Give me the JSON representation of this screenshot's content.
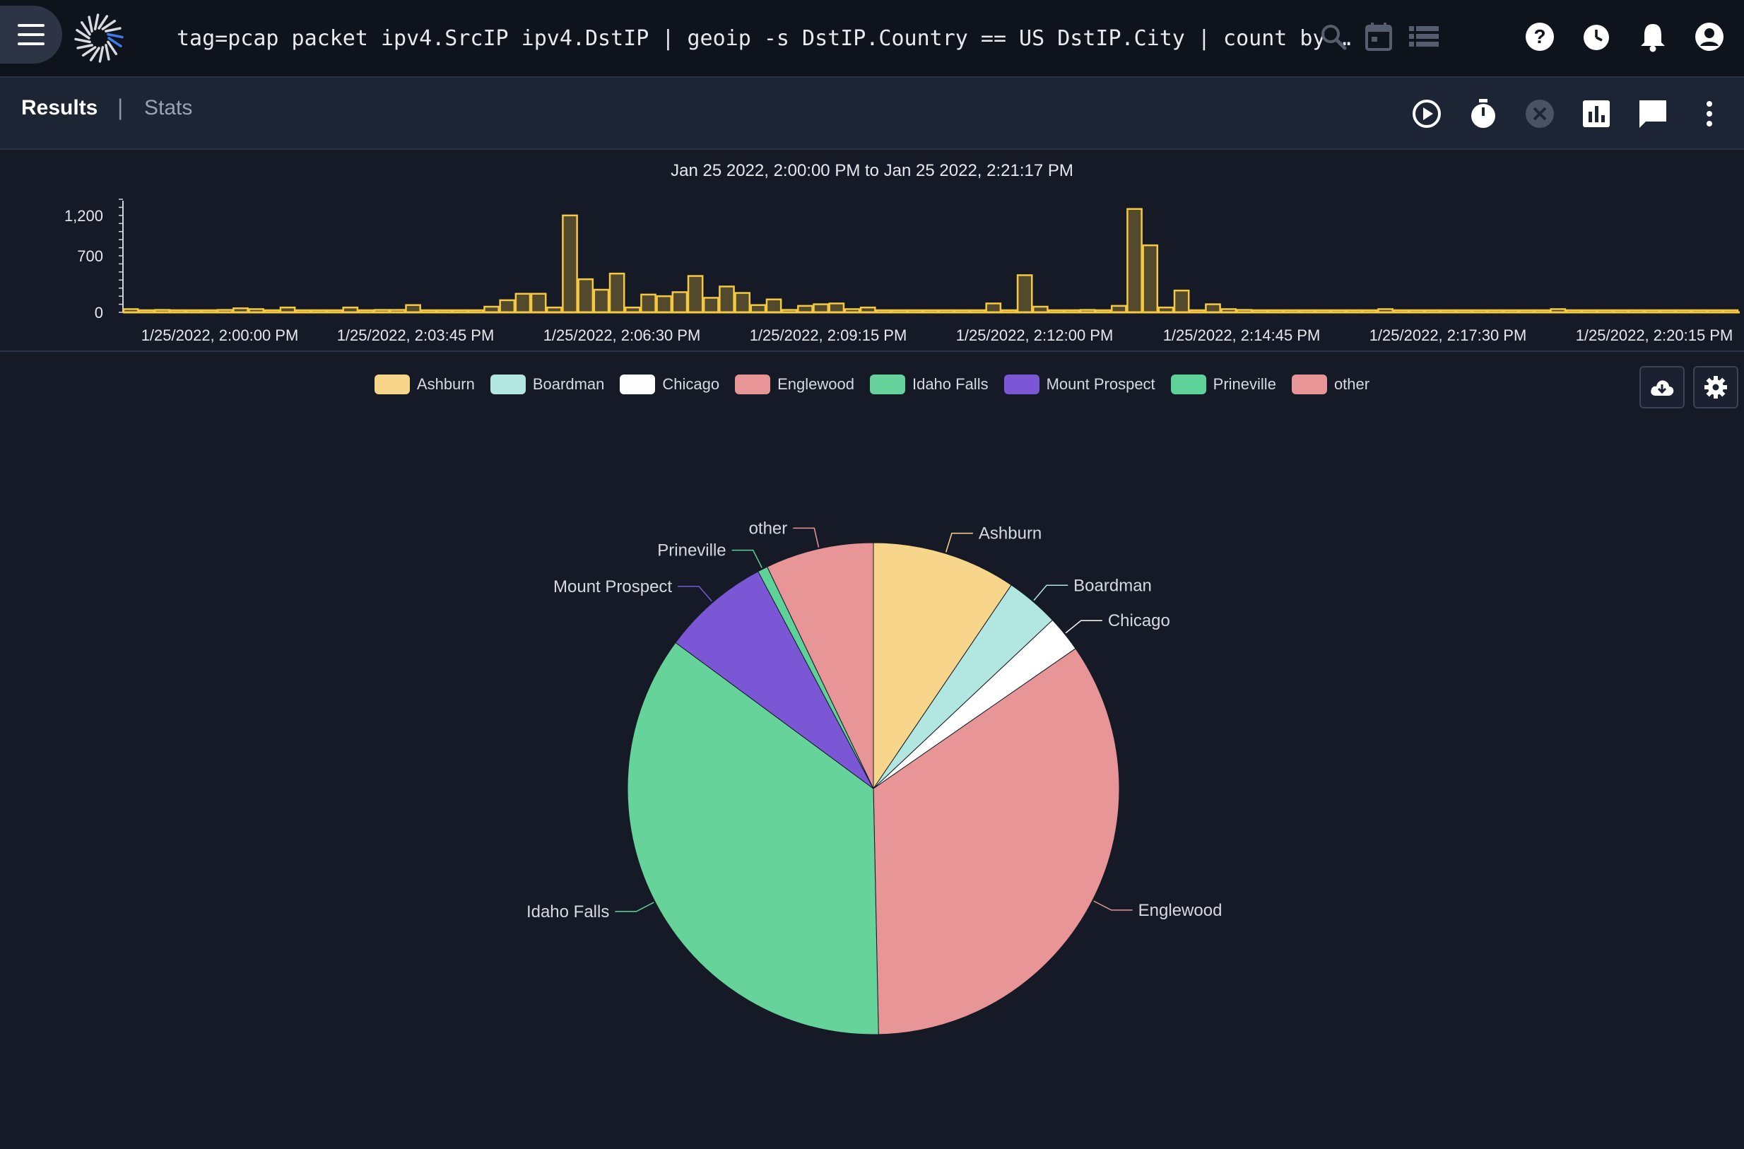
{
  "header": {
    "query": "tag=pcap packet ipv4.SrcIP ipv4.DstIP | geoip -s DstIP.Country == US DstIP.City | count by …",
    "icons": [
      "menu-icon",
      "gravwell-logo",
      "search-icon",
      "calendar-icon",
      "list-icon",
      "help-icon",
      "clock-icon",
      "bell-icon",
      "account-icon"
    ]
  },
  "tabs": {
    "results": "Results",
    "separator": "|",
    "stats": "Stats"
  },
  "toolbar": {
    "icons": [
      "play-icon",
      "timer-icon",
      "cancel-icon",
      "chart-icon",
      "comment-icon",
      "more-icon"
    ]
  },
  "histogram": {
    "range_label": "Jan 25 2022, 2:00:00 PM to Jan 25 2022, 2:21:17 PM",
    "y_ticks": [
      "1,200",
      "700",
      "0"
    ],
    "x_ticks": [
      "1/25/2022, 2:00:00 PM",
      "1/25/2022, 2:03:45 PM",
      "1/25/2022, 2:06:30 PM",
      "1/25/2022, 2:09:15 PM",
      "1/25/2022, 2:12:00 PM",
      "1/25/2022, 2:14:45 PM",
      "1/25/2022, 2:17:30 PM",
      "1/25/2022, 2:20:15 PM"
    ],
    "ymax": 1400,
    "bar_color": "#f5c842",
    "values": [
      40,
      20,
      30,
      20,
      10,
      20,
      30,
      50,
      40,
      20,
      60,
      20,
      20,
      20,
      60,
      20,
      30,
      30,
      90,
      20,
      10,
      20,
      20,
      70,
      150,
      230,
      230,
      60,
      1200,
      410,
      280,
      480,
      60,
      220,
      200,
      250,
      450,
      180,
      320,
      240,
      90,
      160,
      30,
      80,
      100,
      110,
      40,
      60,
      10,
      10,
      10,
      10,
      20,
      10,
      10,
      110,
      10,
      460,
      70,
      10,
      10,
      30,
      10,
      80,
      1280,
      830,
      60,
      270,
      20,
      100,
      40,
      30,
      10,
      10,
      10,
      10,
      10,
      10,
      10,
      10,
      40,
      10,
      10,
      10,
      10,
      10,
      10,
      10,
      10,
      10,
      10,
      40,
      10,
      10,
      10,
      20,
      10,
      10,
      10,
      10,
      10,
      10,
      10
    ]
  },
  "chart_data": {
    "type": "pie",
    "legend_position": "top",
    "series": [
      {
        "name": "Ashburn",
        "value": 10.0,
        "color": "#f7d58a"
      },
      {
        "name": "Boardman",
        "value": 3.7,
        "color": "#b2e6e0"
      },
      {
        "name": "Chicago",
        "value": 2.5,
        "color": "#ffffff"
      },
      {
        "name": "Englewood",
        "value": 36.2,
        "color": "#e79596"
      },
      {
        "name": "Idaho Falls",
        "value": 37.4,
        "color": "#66d39a"
      },
      {
        "name": "Mount Prospect",
        "value": 7.5,
        "color": "#7b57d6"
      },
      {
        "name": "Prineville",
        "value": 0.7,
        "color": "#5fd29a"
      },
      {
        "name": "other",
        "value": 7.5,
        "color": "#e79596"
      }
    ]
  }
}
